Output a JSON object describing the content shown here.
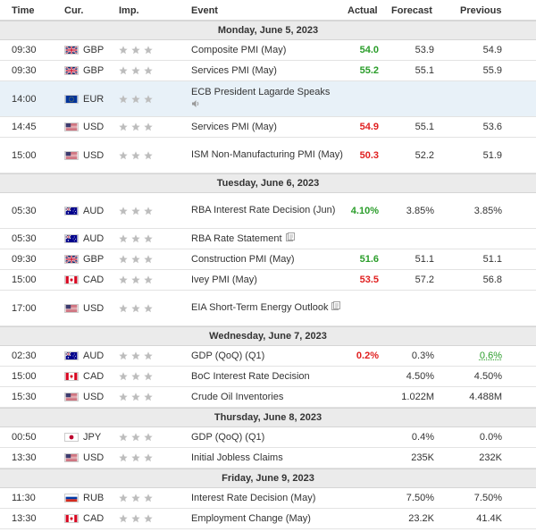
{
  "headers": {
    "time": "Time",
    "cur": "Cur.",
    "imp": "Imp.",
    "event": "Event",
    "actual": "Actual",
    "forecast": "Forecast",
    "previous": "Previous"
  },
  "sections": [
    {
      "day": "Monday, June 5, 2023",
      "rows": [
        {
          "time": "09:30",
          "flag": "gb",
          "cur": "GBP",
          "event": "Composite PMI (May)",
          "actual": "54.0",
          "actual_color": "g",
          "forecast": "53.9",
          "previous": "54.9",
          "h": 23
        },
        {
          "time": "09:30",
          "flag": "gb",
          "cur": "GBP",
          "event": "Services PMI (May)",
          "actual": "55.2",
          "actual_color": "g",
          "forecast": "55.1",
          "previous": "55.9",
          "h": 23
        },
        {
          "time": "14:00",
          "flag": "eu",
          "cur": "EUR",
          "event": "ECB President Lagarde Speaks",
          "icon": "speaker-icon",
          "actual": "",
          "forecast": "",
          "previous": "",
          "h": 40,
          "hl": true
        },
        {
          "time": "14:45",
          "flag": "us",
          "cur": "USD",
          "event": "Services PMI (May)",
          "actual": "54.9",
          "actual_color": "r",
          "forecast": "55.1",
          "previous": "53.6",
          "h": 23
        },
        {
          "time": "15:00",
          "flag": "us",
          "cur": "USD",
          "event": "ISM Non-Manufacturing PMI (May)",
          "actual": "50.3",
          "actual_color": "r",
          "forecast": "52.2",
          "previous": "51.9",
          "h": 40
        }
      ]
    },
    {
      "day": "Tuesday, June 6, 2023",
      "rows": [
        {
          "time": "05:30",
          "flag": "au",
          "cur": "AUD",
          "event": "RBA Interest Rate Decision (Jun)",
          "actual": "4.10%",
          "actual_color": "g",
          "forecast": "3.85%",
          "previous": "3.85%",
          "h": 40
        },
        {
          "time": "05:30",
          "flag": "au",
          "cur": "AUD",
          "event": "RBA Rate Statement",
          "icon": "document-icon",
          "actual": "",
          "forecast": "",
          "previous": "",
          "h": 23
        },
        {
          "time": "09:30",
          "flag": "gb",
          "cur": "GBP",
          "event": "Construction PMI (May)",
          "actual": "51.6",
          "actual_color": "g",
          "forecast": "51.1",
          "previous": "51.1",
          "h": 23
        },
        {
          "time": "15:00",
          "flag": "ca",
          "cur": "CAD",
          "event": "Ivey PMI (May)",
          "actual": "53.5",
          "actual_color": "r",
          "forecast": "57.2",
          "previous": "56.8",
          "h": 23
        },
        {
          "time": "17:00",
          "flag": "us",
          "cur": "USD",
          "event": "EIA Short-Term Energy Outlook",
          "icon": "document-icon",
          "actual": "",
          "forecast": "",
          "previous": "",
          "h": 40
        }
      ]
    },
    {
      "day": "Wednesday, June 7, 2023",
      "rows": [
        {
          "time": "02:30",
          "flag": "au",
          "cur": "AUD",
          "event": "GDP (QoQ) (Q1)",
          "actual": "0.2%",
          "actual_color": "r",
          "forecast": "0.3%",
          "previous": "0.6%",
          "previous_color": "g",
          "h": 23
        },
        {
          "time": "15:00",
          "flag": "ca",
          "cur": "CAD",
          "event": "BoC Interest Rate Decision",
          "actual": "",
          "forecast": "4.50%",
          "previous": "4.50%",
          "previous_bold": true,
          "h": 23
        },
        {
          "time": "15:30",
          "flag": "us",
          "cur": "USD",
          "event": "Crude Oil Inventories",
          "actual": "",
          "forecast": "1.022M",
          "previous": "4.488M",
          "previous_bold": true,
          "h": 23
        }
      ]
    },
    {
      "day": "Thursday, June 8, 2023",
      "rows": [
        {
          "time": "00:50",
          "flag": "jp",
          "cur": "JPY",
          "event": "GDP (QoQ) (Q1)",
          "actual": "",
          "forecast": "0.4%",
          "previous": "0.0%",
          "previous_bold": true,
          "h": 23
        },
        {
          "time": "13:30",
          "flag": "us",
          "cur": "USD",
          "event": "Initial Jobless Claims",
          "actual": "",
          "forecast": "235K",
          "previous": "232K",
          "previous_bold": true,
          "h": 23
        }
      ]
    },
    {
      "day": "Friday, June 9, 2023",
      "rows": [
        {
          "time": "11:30",
          "flag": "ru",
          "cur": "RUB",
          "event": "Interest Rate Decision (May)",
          "actual": "",
          "forecast": "7.50%",
          "previous": "7.50%",
          "previous_bold": true,
          "h": 23
        },
        {
          "time": "13:30",
          "flag": "ca",
          "cur": "CAD",
          "event": "Employment Change (May)",
          "actual": "",
          "forecast": "23.2K",
          "previous": "41.4K",
          "previous_bold": true,
          "h": 23
        }
      ]
    }
  ],
  "colors": {
    "positive": "#2a9d2a",
    "negative": "#e02020",
    "star": "#bdbdbd",
    "day_bg": "#ebebeb",
    "highlight": "#e8f1f8"
  }
}
